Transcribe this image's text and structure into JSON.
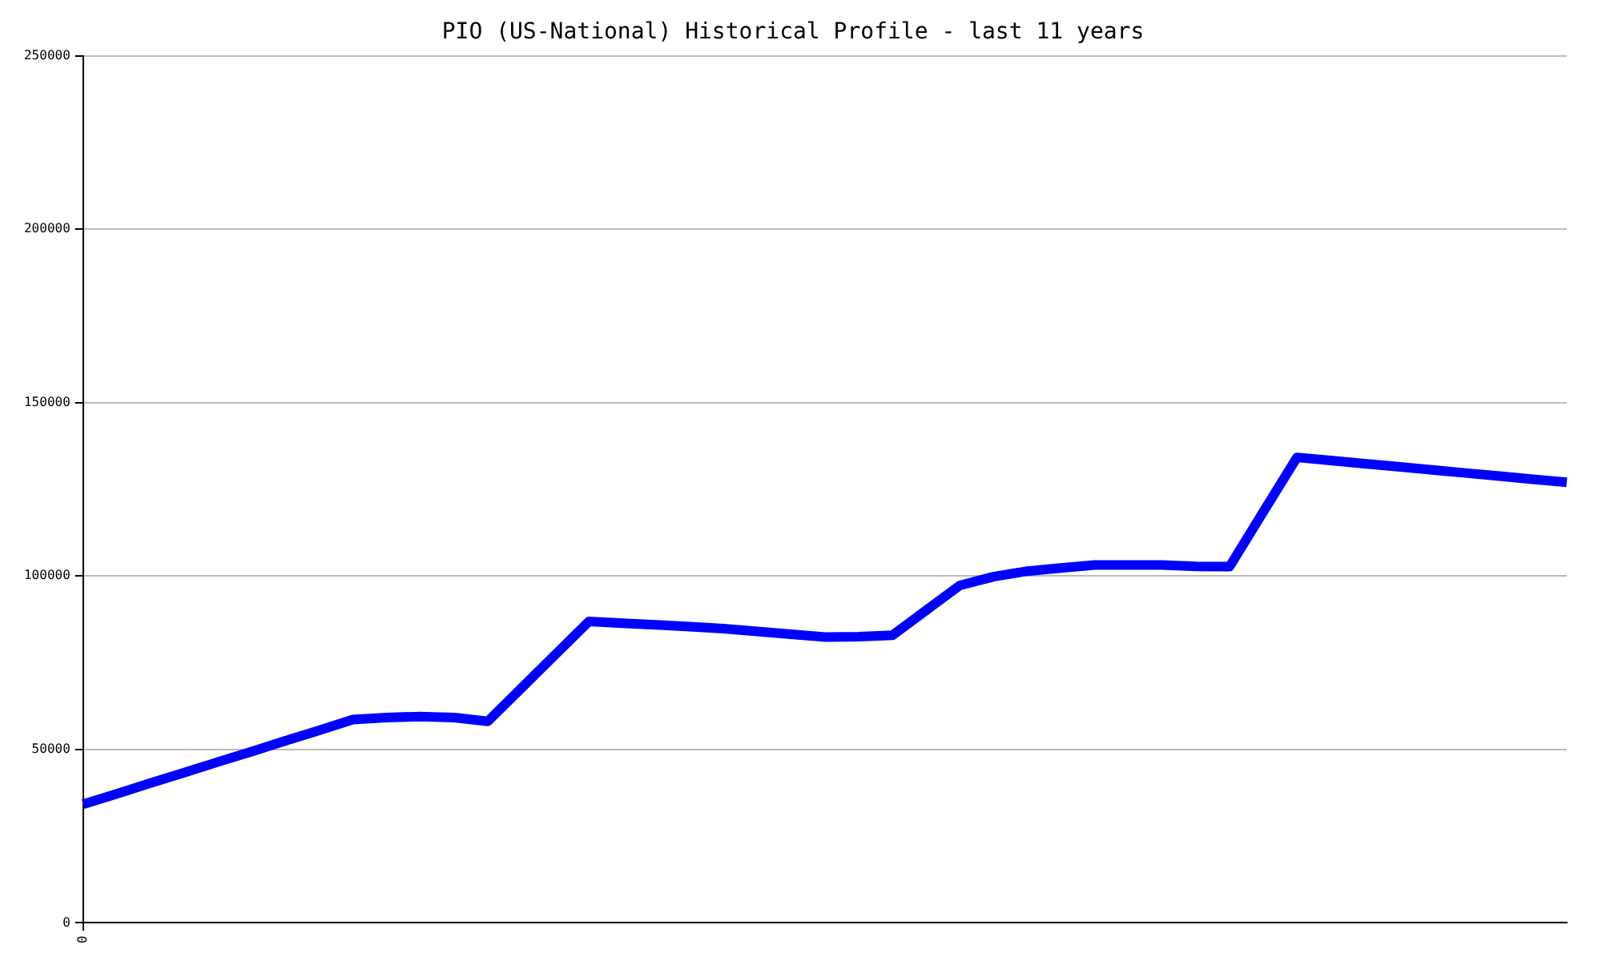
{
  "chart_data": {
    "type": "line",
    "title": "PIO (US-National) Historical Profile - last 11 years",
    "categories": [
      "0",
      null,
      null,
      null,
      null,
      null,
      null,
      null,
      null,
      null,
      null,
      null,
      null,
      null,
      null,
      null,
      null,
      null,
      null,
      null,
      null,
      null,
      null,
      null,
      null,
      null,
      null,
      null,
      null,
      null,
      null,
      null,
      null,
      null,
      null,
      null,
      null,
      null,
      null,
      null,
      null,
      null,
      null,
      null,
      null
    ],
    "series": [
      {
        "color": "#0000ff",
        "values": [
          34200,
          37200,
          40300,
          43300,
          46400,
          49400,
          52500,
          55500,
          58600,
          59200,
          59500,
          59200,
          58100,
          67700,
          77300,
          86900,
          86400,
          85900,
          85400,
          84800,
          84000,
          83200,
          82400,
          82500,
          82900,
          90100,
          97300,
          99800,
          101400,
          102300,
          103200,
          103200,
          103200,
          102800,
          102700,
          118500,
          134200,
          133300,
          132400,
          131500,
          130600,
          129700,
          128800,
          127900,
          127000
        ]
      }
    ],
    "ylim": [
      0,
      250000
    ],
    "yticks": [
      0,
      50000,
      100000,
      150000,
      200000,
      250000
    ],
    "grid": "y",
    "legend": false,
    "marker": "none",
    "line_style": "solid"
  }
}
